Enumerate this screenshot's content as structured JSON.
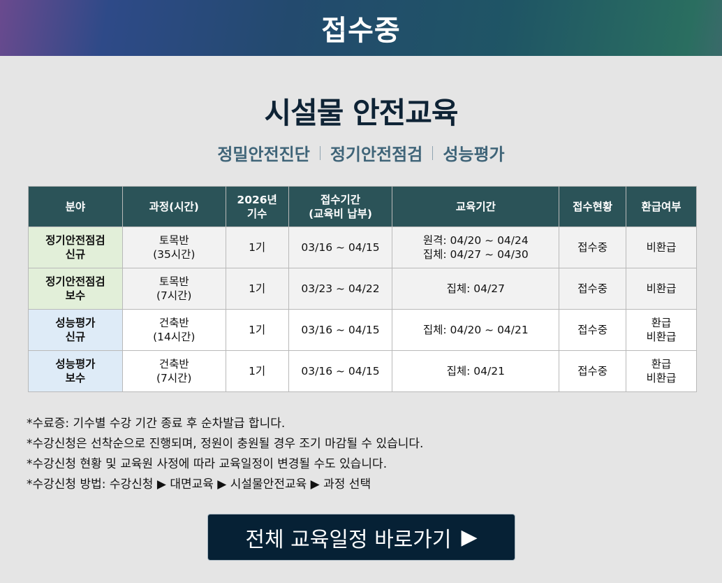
{
  "banner": {
    "status": "접수중"
  },
  "title": "시설물 안전교육",
  "subtitles": [
    "정밀안전진단",
    "정기안전점검",
    "성능평가"
  ],
  "table": {
    "headers": [
      "분야",
      "과정(시간)",
      "2026년\n기수",
      "접수기간\n(교육비 납부)",
      "교육기간",
      "접수현황",
      "환급여부"
    ],
    "rows": [
      {
        "field": "정기안전점검\n신규",
        "course": "토목반\n(35시간)",
        "term": "1기",
        "apply": "03/16 ~ 04/15",
        "edu": "원격:  04/20 ~ 04/24\n집체:  04/27 ~ 04/30",
        "status": "접수중",
        "refund": "비환급"
      },
      {
        "field": "정기안전점검\n보수",
        "course": "토목반\n(7시간)",
        "term": "1기",
        "apply": "03/23 ~ 04/22",
        "edu": "집체: 04/27",
        "status": "접수중",
        "refund": "비환급"
      },
      {
        "field": "성능평가\n신규",
        "course": "건축반\n(14시간)",
        "term": "1기",
        "apply": "03/16 ~ 04/15",
        "edu": "집체: 04/20 ~ 04/21",
        "status": "접수중",
        "refund": "환급\n비환급"
      },
      {
        "field": "성능평가\n보수",
        "course": "건축반\n(7시간)",
        "term": "1기",
        "apply": "03/16 ~ 04/15",
        "edu": "집체: 04/21",
        "status": "접수중",
        "refund": "환급\n비환급"
      }
    ]
  },
  "notes": [
    "*수료증: 기수별 수강 기간 종료 후 순차발급 합니다.",
    "*수강신청은 선착순으로 진행되며, 정원이 충원될 경우 조기 마감될 수 있습니다.",
    "*수강신청 현황 및 교육원 사정에 따라 교육일정이 변경될 수도 있습니다.",
    "*수강신청 방법: 수강신청 ▶ 대면교육 ▶ 시설물안전교육 ▶ 과정 선택"
  ],
  "button": {
    "label": "전체 교육일정 바로가기",
    "arrow": "▶"
  },
  "colors": {
    "header": "#2b5358",
    "field_inspection": "#e2efd9",
    "field_performance": "#deebf7",
    "button": "#062135"
  }
}
